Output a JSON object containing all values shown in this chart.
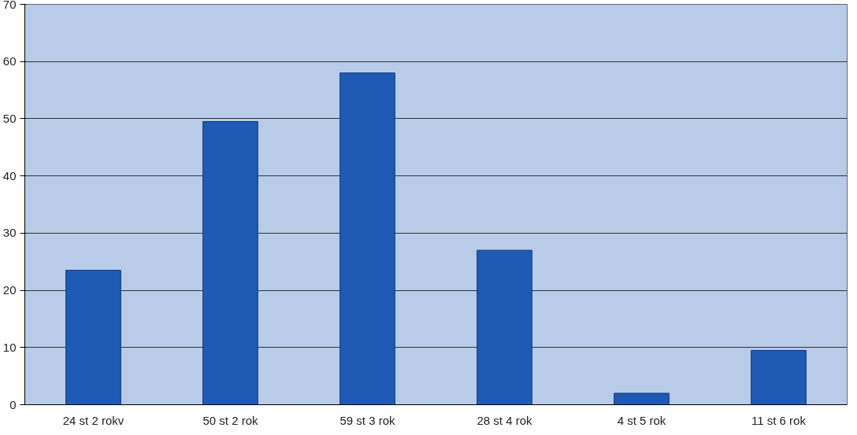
{
  "chart_data": {
    "type": "bar",
    "categories": [
      "24 st 2 rokv",
      "50 st 2 rok",
      "59 st 3 rok",
      "28 st 4 rok",
      "4 st 5 rok",
      "11 st 6 rok"
    ],
    "values": [
      23.5,
      49.5,
      58,
      27,
      2,
      9.5
    ],
    "color": "#1f5bb5",
    "ylim": [
      0,
      70
    ],
    "yticks": [
      0,
      10,
      20,
      30,
      40,
      50,
      60,
      70
    ],
    "grid": "y"
  }
}
